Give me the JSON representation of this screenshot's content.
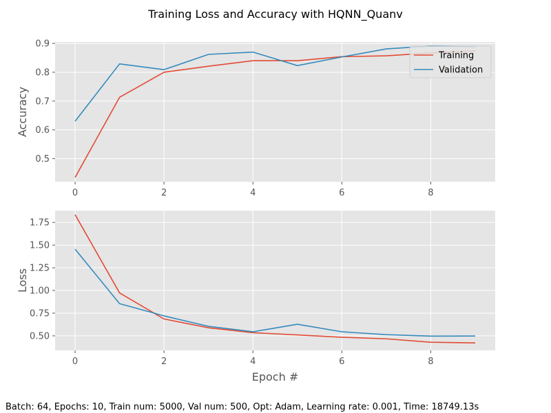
{
  "title": "Training Loss and Accuracy with HQNN_Quanv",
  "footer": "Batch: 64, Epochs: 10, Train num: 5000, Val num: 500, Opt: Adam, Learning rate: 0.001, Time: 18749.13s",
  "colors": {
    "training": "#e24a33",
    "validation": "#348abd",
    "panel_bg": "#e5e5e5",
    "grid": "#ffffff",
    "tick_text": "#555555"
  },
  "chart_data": [
    {
      "type": "line",
      "ylabel": "Accuracy",
      "xlabel": "",
      "xlim": [
        -0.45,
        9.45
      ],
      "ylim": [
        0.42,
        0.905
      ],
      "xticks": [
        0,
        2,
        4,
        6,
        8
      ],
      "yticks": [
        0.5,
        0.6,
        0.7,
        0.8,
        0.9
      ],
      "ytick_labels": [
        "0.5",
        "0.6",
        "0.7",
        "0.8",
        "0.9"
      ],
      "grid": true,
      "legend": "top-right",
      "x": [
        0,
        1,
        2,
        3,
        4,
        5,
        6,
        7,
        8,
        9
      ],
      "series": [
        {
          "name": "Training",
          "values": [
            0.435,
            0.713,
            0.8,
            0.821,
            0.84,
            0.84,
            0.854,
            0.857,
            0.867,
            0.874
          ]
        },
        {
          "name": "Validation",
          "values": [
            0.63,
            0.829,
            0.809,
            0.862,
            0.87,
            0.823,
            0.853,
            0.881,
            0.891,
            0.889
          ]
        }
      ]
    },
    {
      "type": "line",
      "ylabel": "Loss",
      "xlabel": "Epoch #",
      "xlim": [
        -0.45,
        9.45
      ],
      "ylim": [
        0.34,
        1.88
      ],
      "xticks": [
        0,
        2,
        4,
        6,
        8
      ],
      "yticks": [
        0.5,
        0.75,
        1.0,
        1.25,
        1.5,
        1.75
      ],
      "ytick_labels": [
        "0.50",
        "0.75",
        "1.00",
        "1.25",
        "1.50",
        "1.75"
      ],
      "grid": true,
      "legend": "",
      "x": [
        0,
        1,
        2,
        3,
        4,
        5,
        6,
        7,
        8,
        9
      ],
      "series": [
        {
          "name": "Training",
          "values": [
            1.835,
            0.973,
            0.686,
            0.589,
            0.535,
            0.51,
            0.485,
            0.467,
            0.43,
            0.422
          ]
        },
        {
          "name": "Validation",
          "values": [
            1.455,
            0.855,
            0.72,
            0.605,
            0.545,
            0.628,
            0.545,
            0.513,
            0.497,
            0.498
          ]
        }
      ]
    }
  ]
}
